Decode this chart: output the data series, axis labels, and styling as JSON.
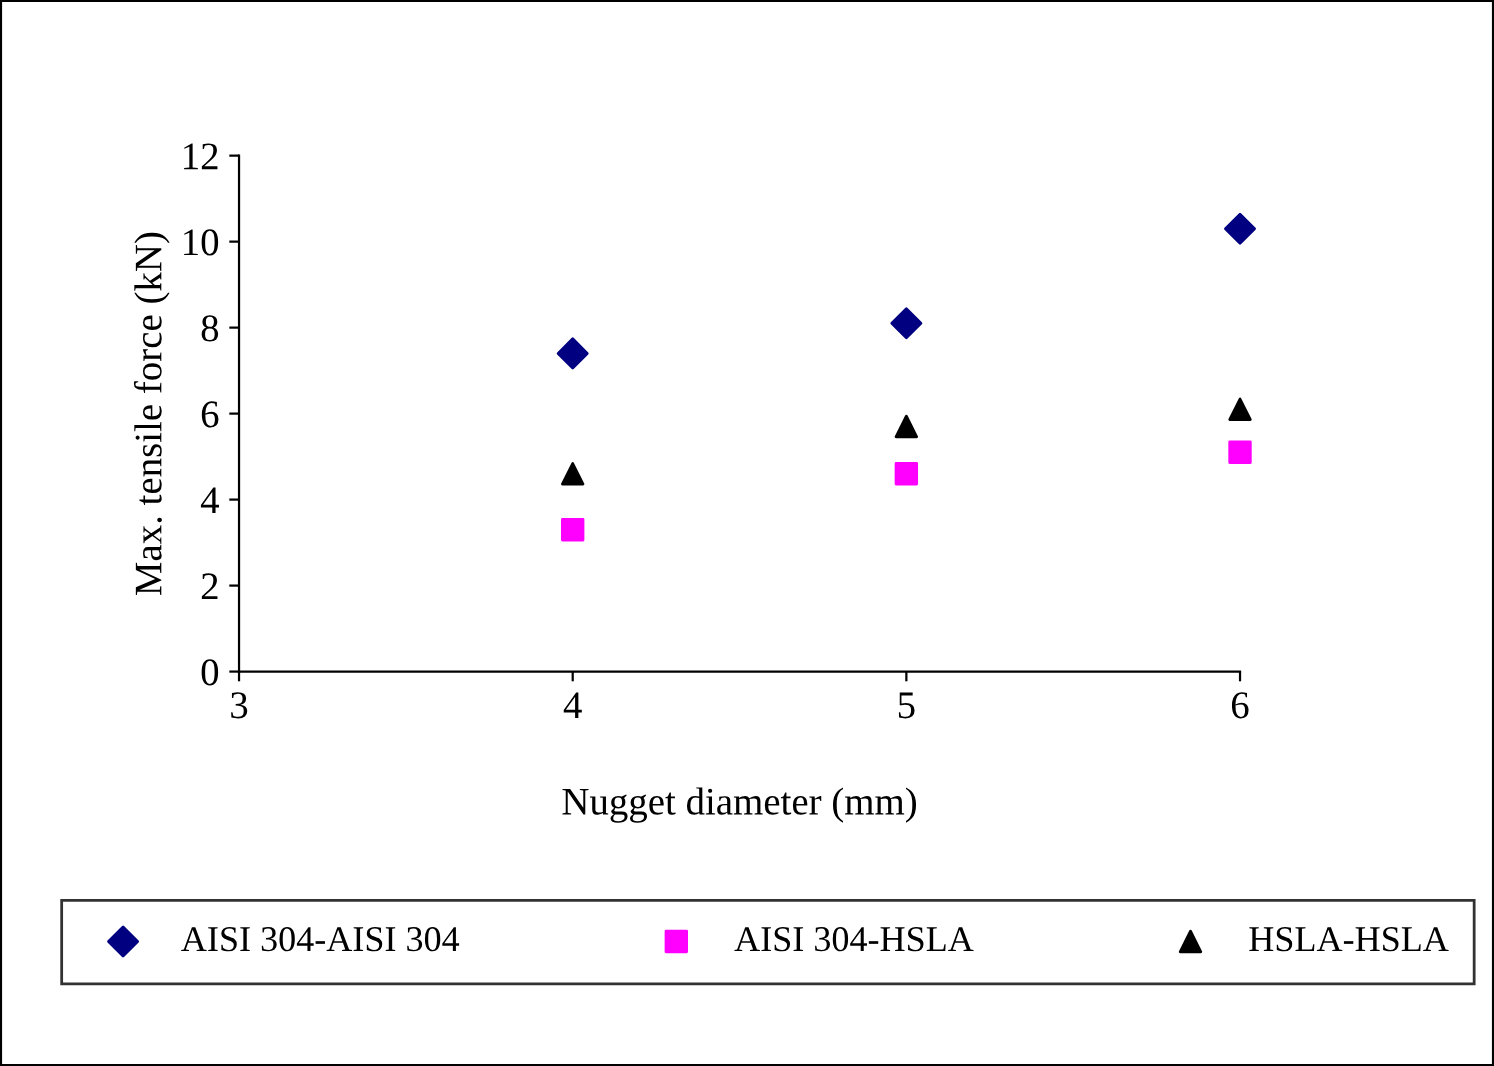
{
  "chart_data": {
    "type": "scatter",
    "xlabel": "Nugget diameter (mm)",
    "ylabel": "Max. tensile force (kN)",
    "x": [
      4,
      5,
      6
    ],
    "series": [
      {
        "name": "AISI 304-AISI 304",
        "color": "#000080",
        "marker": "diamond",
        "values": [
          7.4,
          8.1,
          10.3
        ]
      },
      {
        "name": "AISI 304-HSLA",
        "color": "#ff00ff",
        "marker": "square",
        "values": [
          3.3,
          4.6,
          5.1
        ]
      },
      {
        "name": "HSLA-HSLA",
        "color": "#000000",
        "marker": "triangle",
        "values": [
          4.6,
          5.7,
          6.1
        ]
      }
    ],
    "xlim": [
      3,
      6
    ],
    "xticks": [
      3,
      4,
      5,
      6
    ],
    "ylim": [
      0,
      12
    ],
    "yticks": [
      0,
      2,
      4,
      6,
      8,
      10,
      12
    ],
    "grid": false,
    "legend": "bottom"
  }
}
